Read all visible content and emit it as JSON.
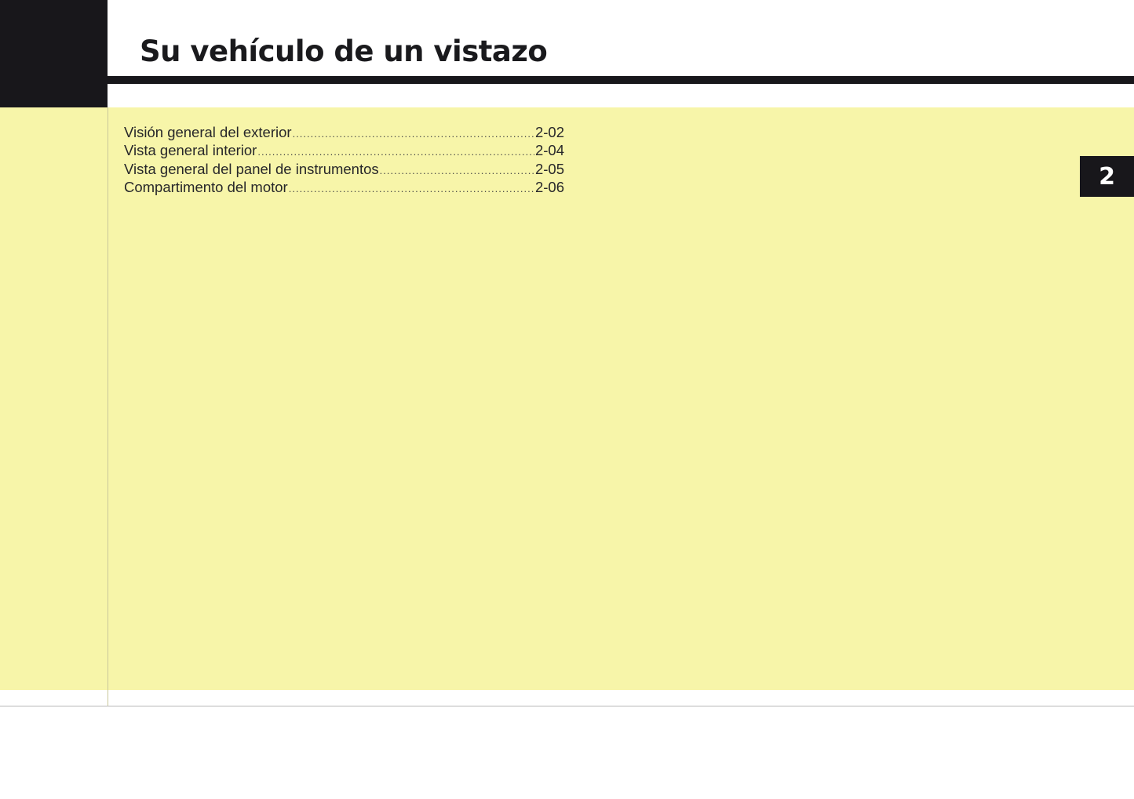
{
  "header": {
    "title": "Su vehículo de un vistazo"
  },
  "toc": [
    {
      "label": "Visión general del exterior",
      "page": "2-02"
    },
    {
      "label": "Vista general interior",
      "page": "2-04"
    },
    {
      "label": "Vista general del panel de instrumentos",
      "page": "2-05"
    },
    {
      "label": "Compartimento del motor",
      "page": "2-06"
    }
  ],
  "chapter_tab": {
    "number": "2"
  },
  "colors": {
    "background_highlight": "#f7f5a9",
    "dark": "#18171b"
  }
}
